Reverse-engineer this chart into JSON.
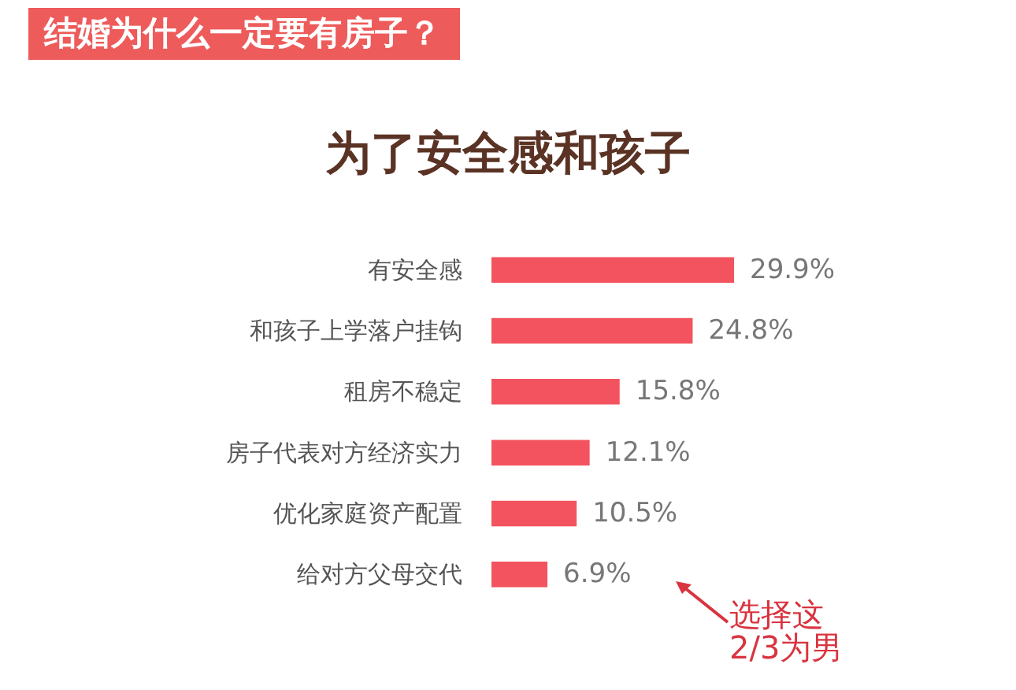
{
  "chart_data": {
    "type": "bar",
    "orientation": "horizontal",
    "title": "结婚为什么一定要有房子？",
    "subtitle": "为了安全感和孩子",
    "categories": [
      "有安全感",
      "和孩子上学落户挂钩",
      "租房不稳定",
      "房子代表对方经济实力",
      "优化家庭资产配置",
      "给对方父母交代"
    ],
    "values": [
      29.9,
      24.8,
      15.8,
      12.1,
      10.5,
      6.9
    ],
    "value_labels": [
      "29.9%",
      "24.8%",
      "15.8%",
      "12.1%",
      "10.5%",
      "6.9%"
    ],
    "color": "#f2535f",
    "annotations": [
      "选择这",
      "2/3为男"
    ]
  }
}
